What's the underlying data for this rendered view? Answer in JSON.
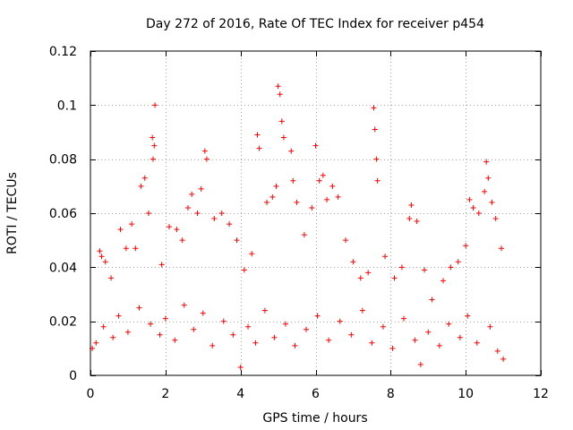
{
  "chart_data": {
    "type": "scatter",
    "title": "Day 272 of 2016, Rate Of TEC Index for receiver p454",
    "xlabel": "GPS time / hours",
    "ylabel": "ROTI / TECUs",
    "xlim": [
      0,
      12
    ],
    "ylim": [
      0,
      0.12
    ],
    "xticks": [
      0,
      2,
      4,
      6,
      8,
      10,
      12
    ],
    "xtick_labels": [
      "0",
      "2",
      "4",
      "6",
      "8",
      "10",
      "12"
    ],
    "yticks": [
      0,
      0.02,
      0.04,
      0.06,
      0.08,
      0.1,
      0.12
    ],
    "ytick_labels": [
      "0",
      "0.02",
      "0.04",
      "0.06",
      "0.08",
      "0.1",
      "0.12"
    ],
    "grid": true,
    "marker": "+",
    "marker_color": "#ff0000",
    "series": [
      {
        "name": "ROTI",
        "points": [
          [
            0.25,
            0.046
          ],
          [
            0.3,
            0.044
          ],
          [
            0.4,
            0.042
          ],
          [
            0.55,
            0.036
          ],
          [
            0.8,
            0.054
          ],
          [
            0.95,
            0.047
          ],
          [
            1.1,
            0.056
          ],
          [
            1.2,
            0.047
          ],
          [
            1.35,
            0.07
          ],
          [
            1.45,
            0.073
          ],
          [
            1.55,
            0.06
          ],
          [
            1.65,
            0.088
          ],
          [
            1.67,
            0.08
          ],
          [
            1.7,
            0.085
          ],
          [
            1.72,
            0.1
          ],
          [
            1.9,
            0.041
          ],
          [
            2.1,
            0.055
          ],
          [
            2.3,
            0.054
          ],
          [
            2.45,
            0.05
          ],
          [
            2.6,
            0.062
          ],
          [
            2.7,
            0.067
          ],
          [
            2.85,
            0.06
          ],
          [
            2.95,
            0.069
          ],
          [
            3.05,
            0.083
          ],
          [
            3.1,
            0.08
          ],
          [
            3.3,
            0.058
          ],
          [
            3.5,
            0.06
          ],
          [
            3.7,
            0.056
          ],
          [
            3.9,
            0.05
          ],
          [
            4.1,
            0.039
          ],
          [
            4.3,
            0.045
          ],
          [
            4.45,
            0.089
          ],
          [
            4.5,
            0.084
          ],
          [
            4.7,
            0.064
          ],
          [
            4.85,
            0.066
          ],
          [
            4.95,
            0.07
          ],
          [
            5.0,
            0.107
          ],
          [
            5.05,
            0.104
          ],
          [
            5.1,
            0.094
          ],
          [
            5.15,
            0.088
          ],
          [
            5.35,
            0.083
          ],
          [
            5.4,
            0.072
          ],
          [
            5.5,
            0.064
          ],
          [
            5.7,
            0.052
          ],
          [
            5.9,
            0.062
          ],
          [
            6.0,
            0.085
          ],
          [
            6.1,
            0.072
          ],
          [
            6.2,
            0.074
          ],
          [
            6.3,
            0.065
          ],
          [
            6.45,
            0.07
          ],
          [
            6.6,
            0.066
          ],
          [
            6.8,
            0.05
          ],
          [
            7.0,
            0.042
          ],
          [
            7.2,
            0.036
          ],
          [
            7.4,
            0.038
          ],
          [
            7.55,
            0.099
          ],
          [
            7.58,
            0.091
          ],
          [
            7.62,
            0.08
          ],
          [
            7.65,
            0.072
          ],
          [
            7.85,
            0.044
          ],
          [
            8.1,
            0.036
          ],
          [
            8.3,
            0.04
          ],
          [
            8.5,
            0.058
          ],
          [
            8.55,
            0.063
          ],
          [
            8.7,
            0.057
          ],
          [
            8.9,
            0.039
          ],
          [
            9.1,
            0.028
          ],
          [
            9.4,
            0.035
          ],
          [
            9.6,
            0.04
          ],
          [
            9.8,
            0.042
          ],
          [
            10.0,
            0.048
          ],
          [
            10.1,
            0.065
          ],
          [
            10.2,
            0.062
          ],
          [
            10.35,
            0.06
          ],
          [
            10.5,
            0.068
          ],
          [
            10.55,
            0.079
          ],
          [
            10.6,
            0.073
          ],
          [
            10.7,
            0.064
          ],
          [
            10.8,
            0.058
          ],
          [
            10.95,
            0.047
          ],
          [
            0.05,
            0.01
          ],
          [
            0.15,
            0.012
          ],
          [
            0.35,
            0.018
          ],
          [
            0.6,
            0.014
          ],
          [
            0.75,
            0.022
          ],
          [
            1.0,
            0.016
          ],
          [
            1.3,
            0.025
          ],
          [
            1.6,
            0.019
          ],
          [
            1.85,
            0.015
          ],
          [
            2.0,
            0.021
          ],
          [
            2.25,
            0.013
          ],
          [
            2.5,
            0.026
          ],
          [
            2.75,
            0.017
          ],
          [
            3.0,
            0.023
          ],
          [
            3.25,
            0.011
          ],
          [
            3.55,
            0.02
          ],
          [
            3.8,
            0.015
          ],
          [
            4.0,
            0.003
          ],
          [
            4.2,
            0.018
          ],
          [
            4.4,
            0.012
          ],
          [
            4.65,
            0.024
          ],
          [
            4.9,
            0.014
          ],
          [
            5.2,
            0.019
          ],
          [
            5.45,
            0.011
          ],
          [
            5.75,
            0.017
          ],
          [
            6.05,
            0.022
          ],
          [
            6.35,
            0.013
          ],
          [
            6.65,
            0.02
          ],
          [
            6.95,
            0.015
          ],
          [
            7.25,
            0.024
          ],
          [
            7.5,
            0.012
          ],
          [
            7.8,
            0.018
          ],
          [
            8.05,
            0.01
          ],
          [
            8.35,
            0.021
          ],
          [
            8.65,
            0.013
          ],
          [
            8.8,
            0.004
          ],
          [
            9.0,
            0.016
          ],
          [
            9.3,
            0.011
          ],
          [
            9.55,
            0.019
          ],
          [
            9.85,
            0.014
          ],
          [
            10.05,
            0.022
          ],
          [
            10.3,
            0.012
          ],
          [
            10.65,
            0.018
          ],
          [
            10.85,
            0.009
          ],
          [
            11.0,
            0.006
          ]
        ]
      }
    ]
  }
}
